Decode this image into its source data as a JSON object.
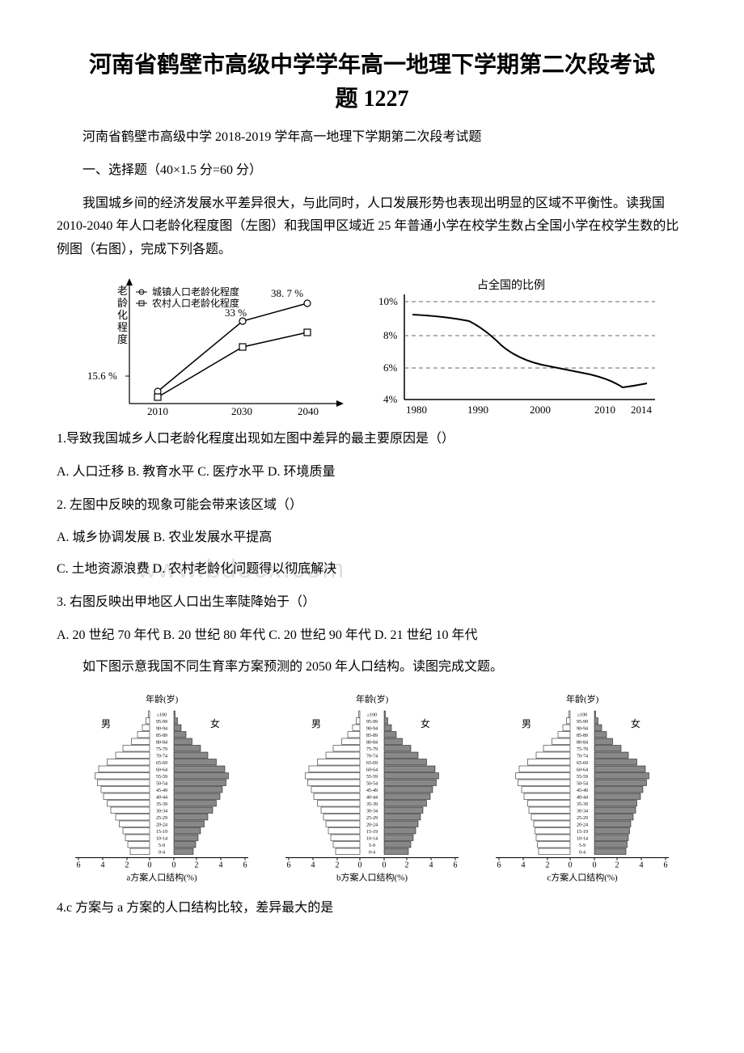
{
  "title_line1": "河南省鹤壁市高级中学学年高一地理下学期第二次段考试",
  "title_line2": "题 1227",
  "subtitle": "河南省鹤壁市高级中学 2018-2019 学年高一地理下学期第二次段考试题",
  "section_header": "一、选择题（40×1.5 分=60 分）",
  "intro_para": "我国城乡间的经济发展水平差异很大，与此同时，人口发展形势也表现出明显的区域不平衡性。读我国 2010-2040 年人口老龄化程度图（左图）和我国甲区域近 25 年普通小学在校学生数占全国小学在校学生数的比例图（右图），完成下列各题。",
  "chart1": {
    "y_axis_label": "老龄化程度",
    "legend1": "城镇人口老龄化程度",
    "legend2": "农村人口老龄化程度",
    "label_387": "38. 7 %",
    "label_33": "33 %",
    "y_min_label": "15.6 %",
    "x_ticks": [
      "2010",
      "2030",
      "2040"
    ],
    "city_series": [
      {
        "x": 2010,
        "y": 15.6
      },
      {
        "x": 2030,
        "y": 33
      },
      {
        "x": 2040,
        "y": 38.7
      }
    ],
    "rural_series": [
      {
        "x": 2010,
        "y": 14
      },
      {
        "x": 2030,
        "y": 26
      },
      {
        "x": 2040,
        "y": 30
      }
    ],
    "line_color": "#000000",
    "background": "#ffffff"
  },
  "chart2": {
    "title": "占全国的比例",
    "y_ticks": [
      "10%",
      "8%",
      "6%",
      "4%"
    ],
    "x_ticks": [
      "1980",
      "1990",
      "2000",
      "2010",
      "2014"
    ],
    "series": [
      {
        "x": 1980,
        "y": 9.2
      },
      {
        "x": 1985,
        "y": 9.0
      },
      {
        "x": 1990,
        "y": 8.6
      },
      {
        "x": 1992,
        "y": 8.0
      },
      {
        "x": 1995,
        "y": 7.0
      },
      {
        "x": 2000,
        "y": 6.2
      },
      {
        "x": 2005,
        "y": 5.6
      },
      {
        "x": 2010,
        "y": 5.2
      },
      {
        "x": 2012,
        "y": 4.8
      },
      {
        "x": 2014,
        "y": 5.0
      }
    ],
    "line_color": "#000000",
    "grid_color": "#666666",
    "background": "#ffffff"
  },
  "q1": "1.导致我国城乡人口老龄化程度出现如左图中差异的最主要原因是（）",
  "q1_opts": "A. 人口迁移 B. 教育水平 C. 医疗水平 D. 环境质量",
  "q2": "2. 左图中反映的现象可能会带来该区域（）",
  "q2_opts_a": "A. 城乡协调发展 B. 农业发展水平提高",
  "q2_opts_b": " C. 土地资源浪费 D. 农村老龄化问题得以彻底解决",
  "q3": "3. 右图反映出甲地区人口出生率陡降始于（）",
  "q3_opts": "A. 20 世纪 70 年代 B. 20 世纪 80 年代 C. 20 世纪 90 年代 D. 21 世纪 10 年代",
  "pyramid_intro": "如下图示意我国不同生育率方案预测的 2050 年人口结构。读图完成文题。",
  "pyramids": {
    "y_label": "年龄(岁)",
    "male_label": "男",
    "female_label": "女",
    "age_groups": [
      "≥100",
      "95-99",
      "90-94",
      "85-89",
      "80-84",
      "75-79",
      "70-74",
      "65-69",
      "60-64",
      "55-59",
      "50-54",
      "45-49",
      "40-44",
      "35-39",
      "30-34",
      "25-29",
      "20-24",
      "15-19",
      "10-14",
      "5-9",
      "0-4"
    ],
    "x_ticks": [
      "6",
      "4",
      "2",
      "0",
      "0",
      "2",
      "4",
      "6"
    ],
    "a_label": "a方案人口结构(%)",
    "b_label": "b方案人口结构(%)",
    "c_label": "c方案人口结构(%)",
    "a_data": [
      0.1,
      0.3,
      0.6,
      1.0,
      1.5,
      2.2,
      2.8,
      3.5,
      4.2,
      4.5,
      4.3,
      4.0,
      3.8,
      3.5,
      3.2,
      2.8,
      2.5,
      2.2,
      2.0,
      1.8,
      1.6
    ],
    "b_data": [
      0.1,
      0.3,
      0.6,
      1.0,
      1.5,
      2.2,
      2.8,
      3.5,
      4.2,
      4.5,
      4.3,
      4.0,
      3.8,
      3.5,
      3.2,
      3.0,
      2.8,
      2.6,
      2.4,
      2.2,
      2.0
    ],
    "c_data": [
      0.1,
      0.3,
      0.6,
      1.0,
      1.5,
      2.2,
      2.8,
      3.5,
      4.2,
      4.5,
      4.3,
      4.0,
      3.8,
      3.5,
      3.4,
      3.2,
      3.0,
      2.9,
      2.8,
      2.7,
      2.6
    ],
    "male_fill": "#ffffff",
    "female_fill": "#888888",
    "stroke": "#000000"
  },
  "q4": "4.c 方案与 a 方案的人口结构比较，差异最大的是",
  "watermark_text": "www.bdocx.com"
}
